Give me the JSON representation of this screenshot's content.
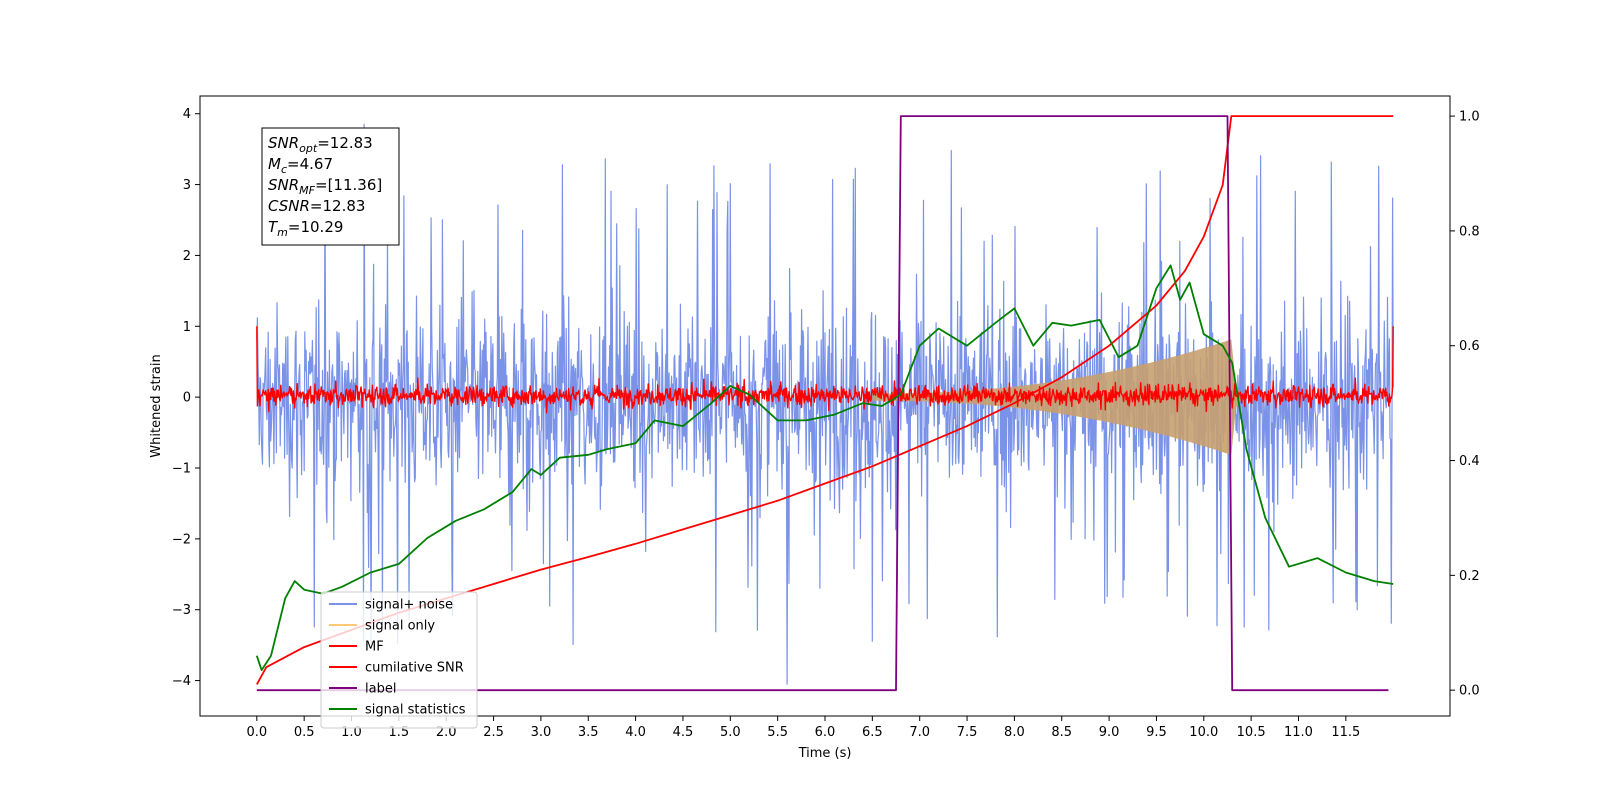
{
  "chart_data": {
    "type": "line",
    "xlabel": "Time (s)",
    "ylabel": "Whitened strain",
    "y2label": "",
    "xlim": [
      -0.6,
      12.6
    ],
    "ylim": [
      -4.5,
      4.25
    ],
    "y2lim": [
      -0.045,
      1.035
    ],
    "x_ticks": [
      "0.0",
      "0.5",
      "1.0",
      "1.5",
      "2.0",
      "2.5",
      "3.0",
      "3.5",
      "4.0",
      "4.5",
      "5.0",
      "5.5",
      "6.0",
      "6.5",
      "7.0",
      "7.5",
      "8.0",
      "8.5",
      "9.0",
      "9.5",
      "10.0",
      "10.5",
      "11.0",
      "11.5"
    ],
    "y_ticks": [
      "4",
      "3",
      "2",
      "1",
      "0",
      "−1",
      "−2",
      "−3",
      "−4"
    ],
    "y2_ticks": [
      "1.0",
      "0.8",
      "0.6",
      "0.4",
      "0.2",
      "0.0"
    ],
    "annotation": {
      "lines": [
        {
          "var": "SNR",
          "sub": "opt",
          "value": "=12.83"
        },
        {
          "var": "M",
          "sub": "c",
          "value": "=4.67"
        },
        {
          "var": "SNR",
          "sub": "MF",
          "value": "=[11.36]"
        },
        {
          "var": "CSNR",
          "sub": "",
          "value": "=12.83"
        },
        {
          "var": "T",
          "sub": "m",
          "value": "=10.29"
        }
      ]
    },
    "legend": {
      "placement": "lower-left",
      "entries": [
        {
          "label": "signal+ noise",
          "color": "#7a93e8"
        },
        {
          "label": "signal only",
          "color": "#ffc878"
        },
        {
          "label": "MF",
          "color": "#ff0000"
        },
        {
          "label": "cumilative SNR",
          "color": "#ff0000"
        },
        {
          "label": "label",
          "color": "#800080"
        },
        {
          "label": "signal statistics",
          "color": "#008000"
        }
      ]
    },
    "series": [
      {
        "name": "signal+ noise",
        "axis": "left",
        "kind": "noise",
        "x_range": [
          0,
          12.0
        ],
        "band": [
          -1.7,
          1.6
        ],
        "peak_max": 3.85,
        "peak_min": -4.05,
        "color": "#7a93e8"
      },
      {
        "name": "signal only",
        "axis": "left",
        "kind": "chirp",
        "x_range": [
          6.5,
          10.29
        ],
        "max_amplitude": 0.85,
        "color": "#c8a070"
      },
      {
        "name": "MF",
        "axis": "left",
        "kind": "noise",
        "x_range": [
          0,
          12.0
        ],
        "band": [
          -0.15,
          0.2
        ],
        "edge_value": 1.0,
        "color": "#ff0000"
      },
      {
        "name": "cumilative SNR",
        "axis": "right",
        "kind": "line",
        "color": "#ff0000",
        "points": [
          [
            0.0,
            0.01
          ],
          [
            0.1,
            0.04
          ],
          [
            0.5,
            0.075
          ],
          [
            1.0,
            0.105
          ],
          [
            1.5,
            0.135
          ],
          [
            2.0,
            0.16
          ],
          [
            2.5,
            0.185
          ],
          [
            3.0,
            0.21
          ],
          [
            3.5,
            0.232
          ],
          [
            4.0,
            0.255
          ],
          [
            4.5,
            0.28
          ],
          [
            5.0,
            0.305
          ],
          [
            5.5,
            0.33
          ],
          [
            6.0,
            0.36
          ],
          [
            6.5,
            0.39
          ],
          [
            7.0,
            0.425
          ],
          [
            7.5,
            0.46
          ],
          [
            8.0,
            0.5
          ],
          [
            8.5,
            0.545
          ],
          [
            9.0,
            0.6
          ],
          [
            9.5,
            0.67
          ],
          [
            9.8,
            0.73
          ],
          [
            10.0,
            0.79
          ],
          [
            10.2,
            0.88
          ],
          [
            10.29,
            1.0
          ],
          [
            12.0,
            1.0
          ]
        ]
      },
      {
        "name": "label",
        "axis": "right",
        "kind": "line",
        "color": "#800080",
        "points": [
          [
            0.0,
            0.0
          ],
          [
            6.75,
            0.0
          ],
          [
            6.8,
            1.0
          ],
          [
            10.25,
            1.0
          ],
          [
            10.3,
            0.0
          ],
          [
            11.95,
            0.0
          ]
        ]
      },
      {
        "name": "signal statistics",
        "axis": "right",
        "kind": "line",
        "color": "#008000",
        "points": [
          [
            0.0,
            0.06
          ],
          [
            0.05,
            0.035
          ],
          [
            0.15,
            0.06
          ],
          [
            0.3,
            0.16
          ],
          [
            0.4,
            0.19
          ],
          [
            0.5,
            0.175
          ],
          [
            0.7,
            0.168
          ],
          [
            0.9,
            0.18
          ],
          [
            1.2,
            0.205
          ],
          [
            1.5,
            0.22
          ],
          [
            1.8,
            0.265
          ],
          [
            2.1,
            0.295
          ],
          [
            2.4,
            0.315
          ],
          [
            2.7,
            0.345
          ],
          [
            2.9,
            0.385
          ],
          [
            3.0,
            0.375
          ],
          [
            3.2,
            0.405
          ],
          [
            3.5,
            0.41
          ],
          [
            3.7,
            0.42
          ],
          [
            4.0,
            0.43
          ],
          [
            4.2,
            0.47
          ],
          [
            4.5,
            0.46
          ],
          [
            4.8,
            0.5
          ],
          [
            5.0,
            0.53
          ],
          [
            5.2,
            0.515
          ],
          [
            5.5,
            0.47
          ],
          [
            5.8,
            0.47
          ],
          [
            6.1,
            0.48
          ],
          [
            6.4,
            0.5
          ],
          [
            6.6,
            0.495
          ],
          [
            6.8,
            0.515
          ],
          [
            7.0,
            0.6
          ],
          [
            7.2,
            0.63
          ],
          [
            7.5,
            0.6
          ],
          [
            7.8,
            0.64
          ],
          [
            8.0,
            0.665
          ],
          [
            8.2,
            0.6
          ],
          [
            8.4,
            0.64
          ],
          [
            8.6,
            0.635
          ],
          [
            8.9,
            0.645
          ],
          [
            9.1,
            0.58
          ],
          [
            9.3,
            0.6
          ],
          [
            9.5,
            0.7
          ],
          [
            9.65,
            0.74
          ],
          [
            9.75,
            0.68
          ],
          [
            9.85,
            0.71
          ],
          [
            10.0,
            0.62
          ],
          [
            10.2,
            0.6
          ],
          [
            10.3,
            0.57
          ],
          [
            10.45,
            0.42
          ],
          [
            10.65,
            0.3
          ],
          [
            10.9,
            0.215
          ],
          [
            11.2,
            0.23
          ],
          [
            11.5,
            0.205
          ],
          [
            11.8,
            0.19
          ],
          [
            12.0,
            0.185
          ]
        ]
      }
    ]
  }
}
